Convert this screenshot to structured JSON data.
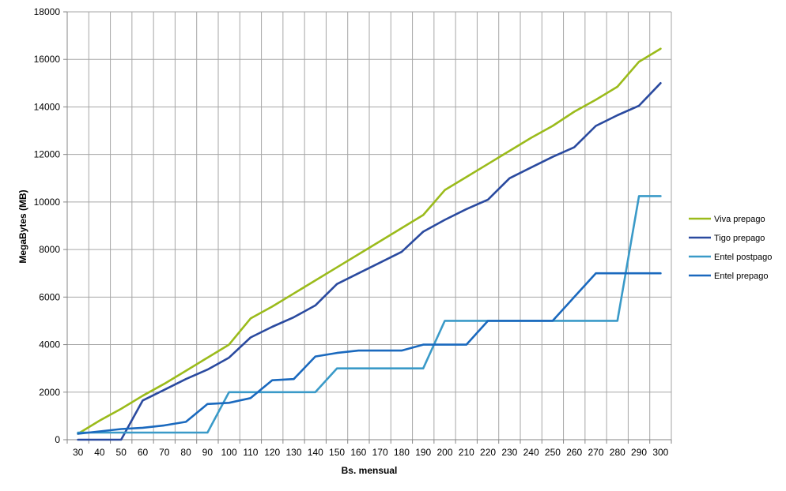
{
  "chart_data": {
    "type": "line",
    "title": "",
    "xlabel": "Bs. mensual",
    "ylabel": "MegaBytes (MB)",
    "ylim": [
      0,
      18000
    ],
    "yticks": [
      0,
      2000,
      4000,
      6000,
      8000,
      10000,
      12000,
      14000,
      16000,
      18000
    ],
    "x": [
      30,
      40,
      50,
      60,
      70,
      80,
      90,
      100,
      110,
      120,
      130,
      140,
      150,
      160,
      170,
      180,
      190,
      200,
      210,
      220,
      230,
      240,
      250,
      260,
      270,
      280,
      290,
      300
    ],
    "grid": "major",
    "legend": "right",
    "series": [
      {
        "name": "Viva prepago",
        "color": "#9BBB1B",
        "values": [
          250,
          800,
          1300,
          1850,
          2350,
          2900,
          3450,
          4000,
          5100,
          5600,
          6150,
          6700,
          7250,
          7800,
          8350,
          8900,
          9450,
          10500,
          11050,
          11600,
          12150,
          12700,
          13200,
          13800,
          14300,
          14850,
          15900,
          16450
        ]
      },
      {
        "name": "Tigo prepago",
        "color": "#2A4A9F",
        "values": [
          0,
          0,
          0,
          1650,
          2100,
          2550,
          2950,
          3450,
          4300,
          4750,
          5150,
          5650,
          6550,
          7000,
          7450,
          7900,
          8750,
          9250,
          9700,
          10100,
          11000,
          11450,
          11900,
          12300,
          13200,
          13650,
          14050,
          15000
        ]
      },
      {
        "name": "Entel postpago",
        "color": "#3A9AC8",
        "values": [
          300,
          300,
          300,
          300,
          300,
          300,
          300,
          2000,
          2000,
          2000,
          2000,
          2000,
          3000,
          3000,
          3000,
          3000,
          3000,
          5000,
          5000,
          5000,
          5000,
          5000,
          5000,
          5000,
          5000,
          5000,
          10250,
          10250
        ]
      },
      {
        "name": "Entel prepago",
        "color": "#1A69BE",
        "values": [
          250,
          350,
          450,
          500,
          600,
          750,
          1500,
          1550,
          1750,
          2500,
          2550,
          3500,
          3650,
          3750,
          3750,
          3750,
          4000,
          4000,
          4000,
          5000,
          5000,
          5000,
          5000,
          6000,
          7000,
          7000,
          7000,
          7000
        ]
      }
    ]
  }
}
